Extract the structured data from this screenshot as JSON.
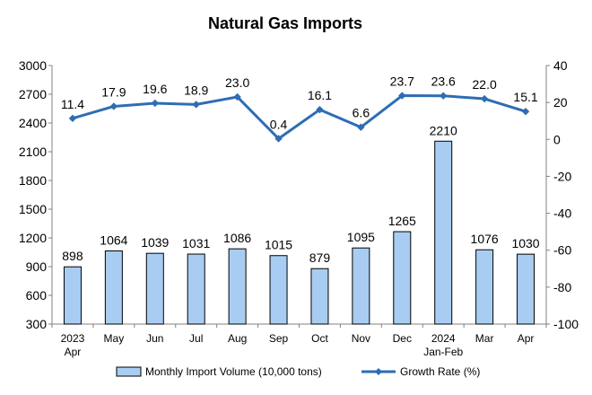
{
  "chart_data": {
    "type": "bar",
    "title": "Natural Gas Imports",
    "categories": [
      [
        "2023",
        "Apr"
      ],
      [
        "May"
      ],
      [
        "Jun"
      ],
      [
        "Jul"
      ],
      [
        "Aug"
      ],
      [
        "Sep"
      ],
      [
        "Oct"
      ],
      [
        "Nov"
      ],
      [
        "Dec"
      ],
      [
        "2024",
        "Jan-Feb"
      ],
      [
        "Mar"
      ],
      [
        "Apr"
      ]
    ],
    "series": [
      {
        "name": "Monthly Import Volume (10,000 tons)",
        "type": "bar",
        "axis": "left",
        "color": "#a9cdf2",
        "values": [
          898,
          1064,
          1039,
          1031,
          1086,
          1015,
          879,
          1095,
          1265,
          2210,
          1076,
          1030
        ]
      },
      {
        "name": "Growth Rate (%)",
        "type": "line",
        "axis": "right",
        "color": "#2e6db4",
        "values": [
          11.4,
          17.9,
          19.6,
          18.9,
          23.0,
          0.4,
          16.1,
          6.6,
          23.7,
          23.6,
          22.0,
          15.1
        ]
      }
    ],
    "y_left": {
      "min": 300,
      "max": 3000,
      "ticks": [
        300,
        600,
        900,
        1200,
        1500,
        1800,
        2100,
        2400,
        2700,
        3000
      ]
    },
    "y_right": {
      "min": -100,
      "max": 40,
      "ticks": [
        -100,
        -80,
        -60,
        -40,
        -20,
        0,
        20,
        40
      ]
    },
    "grid": false,
    "legend_position": "bottom"
  }
}
